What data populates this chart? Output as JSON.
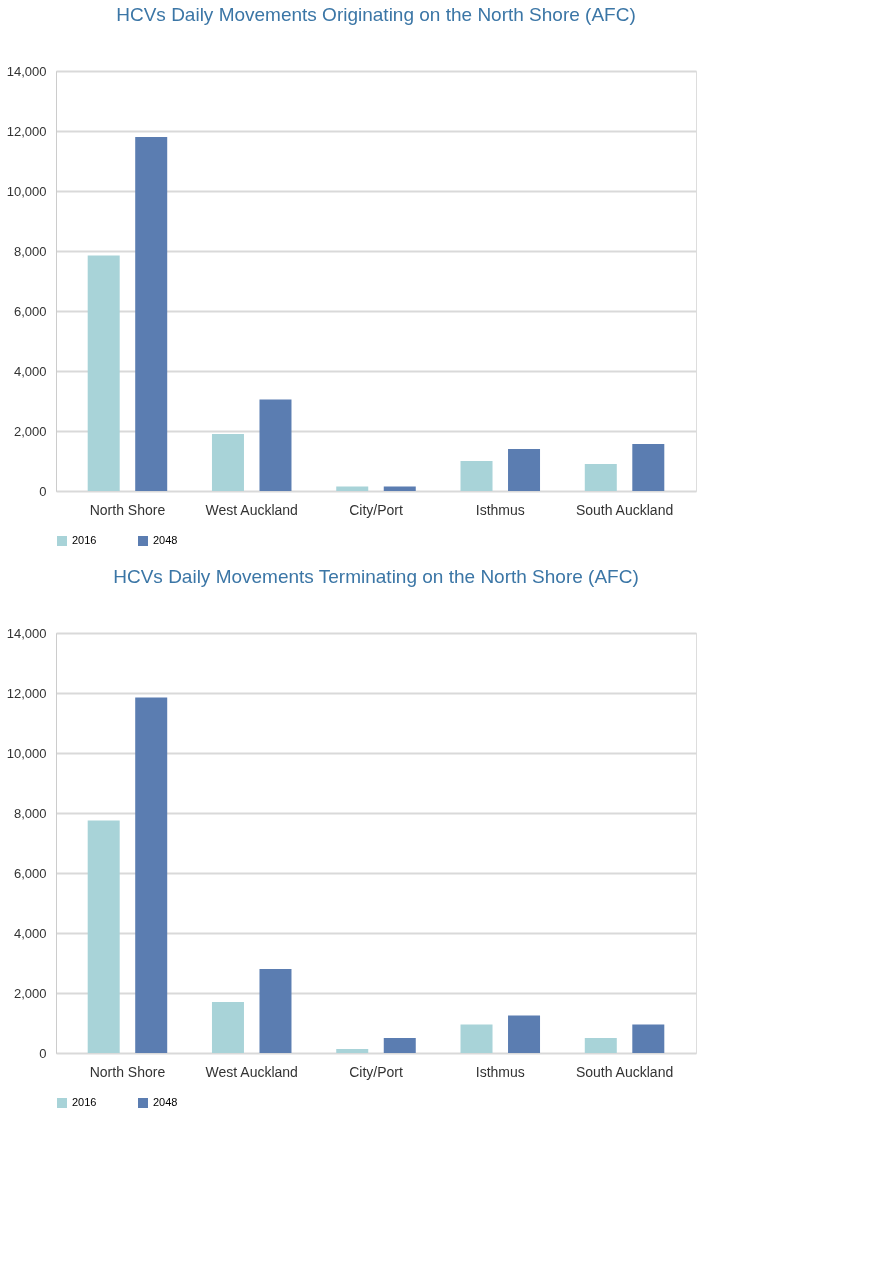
{
  "chart_data": [
    {
      "type": "bar",
      "title": "HCVs Daily Movements Originating on the North Shore (AFC)",
      "categories": [
        "North Shore",
        "West Auckland",
        "City/Port",
        "Isthmus",
        "South Auckland"
      ],
      "series": [
        {
          "name": "2016",
          "color": "#a8d3d8",
          "values": [
            7850,
            1900,
            150,
            1000,
            900
          ]
        },
        {
          "name": "2048",
          "color": "#5b7db1",
          "values": [
            11800,
            3050,
            150,
            1400,
            1570
          ]
        }
      ],
      "ylim": [
        0,
        14000
      ],
      "yticks": [
        {
          "value": 0,
          "label": "0"
        },
        {
          "value": 2000,
          "label": "2,000"
        },
        {
          "value": 4000,
          "label": "4,000"
        },
        {
          "value": 6000,
          "label": "6,000"
        },
        {
          "value": 8000,
          "label": "8,000"
        },
        {
          "value": 10000,
          "label": "10,000"
        },
        {
          "value": 12000,
          "label": "12,000"
        },
        {
          "value": 14000,
          "label": "14,000"
        }
      ],
      "grid": "y",
      "legend": "bottom"
    },
    {
      "type": "bar",
      "title": "HCVs Daily Movements Terminating on the North Shore (AFC)",
      "categories": [
        "North Shore",
        "West Auckland",
        "City/Port",
        "Isthmus",
        "South Auckland"
      ],
      "series": [
        {
          "name": "2016",
          "color": "#a8d3d8",
          "values": [
            7750,
            1700,
            130,
            950,
            500
          ]
        },
        {
          "name": "2048",
          "color": "#5b7db1",
          "values": [
            11850,
            2800,
            500,
            1250,
            950
          ]
        }
      ],
      "ylim": [
        0,
        14000
      ],
      "yticks": [
        {
          "value": 0,
          "label": "0"
        },
        {
          "value": 2000,
          "label": "2,000"
        },
        {
          "value": 4000,
          "label": "4,000"
        },
        {
          "value": 6000,
          "label": "6,000"
        },
        {
          "value": 8000,
          "label": "8,000"
        },
        {
          "value": 10000,
          "label": "10,000"
        },
        {
          "value": 12000,
          "label": "12,000"
        },
        {
          "value": 14000,
          "label": "14,000"
        }
      ],
      "grid": "y",
      "legend": "bottom"
    }
  ]
}
